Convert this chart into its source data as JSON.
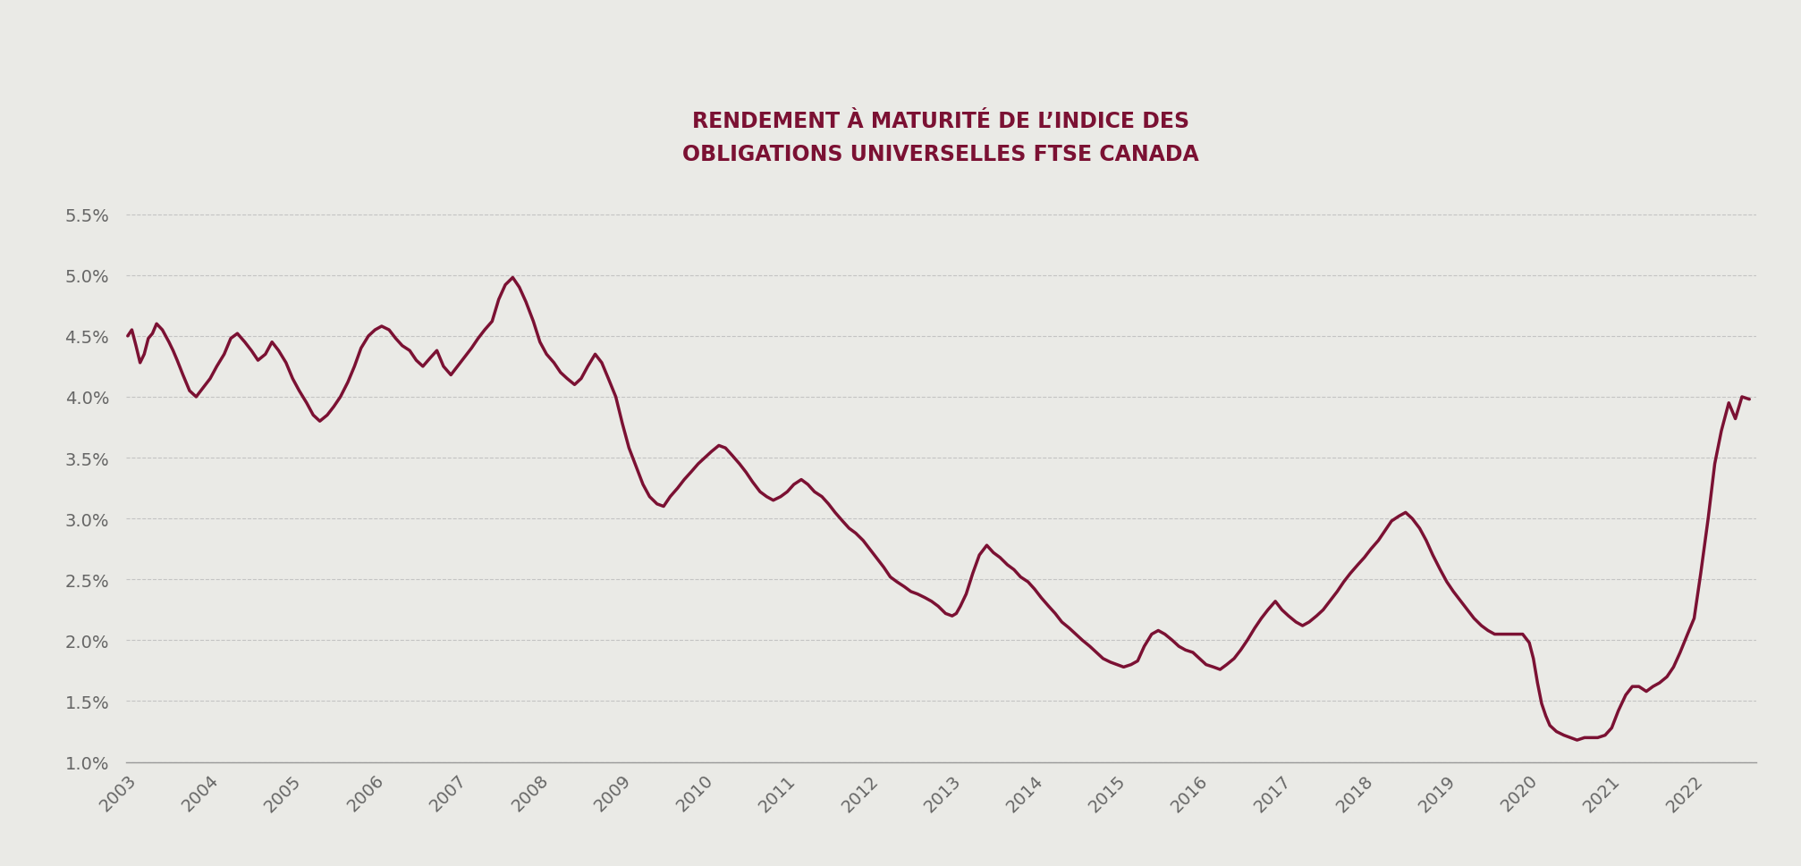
{
  "title": "RENDEMENT À MATURITÉ DE L’INDICE DES\nOBLIGATIONS UNIVERSELLES FTSE CANADA",
  "line_color": "#7B1133",
  "background_color": "#EAEAE6",
  "grid_color": "#BBBBBB",
  "axis_color": "#999999",
  "title_color": "#7B1133",
  "ylim": [
    0.01,
    0.057
  ],
  "yticks": [
    0.01,
    0.015,
    0.02,
    0.025,
    0.03,
    0.035,
    0.04,
    0.045,
    0.05,
    0.055
  ],
  "xlim_start": 2003.0,
  "xlim_end": 2022.75,
  "years": [
    2003,
    2004,
    2005,
    2006,
    2007,
    2008,
    2009,
    2010,
    2011,
    2012,
    2013,
    2014,
    2015,
    2016,
    2017,
    2018,
    2019,
    2020,
    2021,
    2022
  ],
  "data": [
    [
      2003.0,
      0.045
    ],
    [
      2003.05,
      0.0455
    ],
    [
      2003.1,
      0.0442
    ],
    [
      2003.15,
      0.0428
    ],
    [
      2003.2,
      0.0435
    ],
    [
      2003.25,
      0.0448
    ],
    [
      2003.3,
      0.0452
    ],
    [
      2003.35,
      0.046
    ],
    [
      2003.42,
      0.0455
    ],
    [
      2003.5,
      0.0445
    ],
    [
      2003.55,
      0.0438
    ],
    [
      2003.6,
      0.043
    ],
    [
      2003.67,
      0.0418
    ],
    [
      2003.75,
      0.0405
    ],
    [
      2003.83,
      0.04
    ],
    [
      2003.92,
      0.0408
    ],
    [
      2004.0,
      0.0415
    ],
    [
      2004.08,
      0.0425
    ],
    [
      2004.17,
      0.0435
    ],
    [
      2004.25,
      0.0448
    ],
    [
      2004.33,
      0.0452
    ],
    [
      2004.42,
      0.0445
    ],
    [
      2004.5,
      0.0438
    ],
    [
      2004.58,
      0.043
    ],
    [
      2004.67,
      0.0435
    ],
    [
      2004.75,
      0.0445
    ],
    [
      2004.83,
      0.0438
    ],
    [
      2004.92,
      0.0428
    ],
    [
      2005.0,
      0.0415
    ],
    [
      2005.08,
      0.0405
    ],
    [
      2005.17,
      0.0395
    ],
    [
      2005.25,
      0.0385
    ],
    [
      2005.33,
      0.038
    ],
    [
      2005.42,
      0.0385
    ],
    [
      2005.5,
      0.0392
    ],
    [
      2005.58,
      0.04
    ],
    [
      2005.67,
      0.0412
    ],
    [
      2005.75,
      0.0425
    ],
    [
      2005.83,
      0.044
    ],
    [
      2005.92,
      0.045
    ],
    [
      2006.0,
      0.0455
    ],
    [
      2006.08,
      0.0458
    ],
    [
      2006.17,
      0.0455
    ],
    [
      2006.25,
      0.0448
    ],
    [
      2006.33,
      0.0442
    ],
    [
      2006.42,
      0.0438
    ],
    [
      2006.5,
      0.043
    ],
    [
      2006.58,
      0.0425
    ],
    [
      2006.67,
      0.0432
    ],
    [
      2006.75,
      0.0438
    ],
    [
      2006.83,
      0.0425
    ],
    [
      2006.92,
      0.0418
    ],
    [
      2007.0,
      0.0425
    ],
    [
      2007.08,
      0.0432
    ],
    [
      2007.17,
      0.044
    ],
    [
      2007.25,
      0.0448
    ],
    [
      2007.33,
      0.0455
    ],
    [
      2007.42,
      0.0462
    ],
    [
      2007.5,
      0.048
    ],
    [
      2007.58,
      0.0492
    ],
    [
      2007.67,
      0.0498
    ],
    [
      2007.75,
      0.049
    ],
    [
      2007.83,
      0.0478
    ],
    [
      2007.92,
      0.0462
    ],
    [
      2008.0,
      0.0445
    ],
    [
      2008.08,
      0.0435
    ],
    [
      2008.17,
      0.0428
    ],
    [
      2008.25,
      0.042
    ],
    [
      2008.33,
      0.0415
    ],
    [
      2008.42,
      0.041
    ],
    [
      2008.5,
      0.0415
    ],
    [
      2008.58,
      0.0425
    ],
    [
      2008.67,
      0.0435
    ],
    [
      2008.75,
      0.0428
    ],
    [
      2008.83,
      0.0415
    ],
    [
      2008.92,
      0.04
    ],
    [
      2009.0,
      0.0378
    ],
    [
      2009.08,
      0.0358
    ],
    [
      2009.17,
      0.0342
    ],
    [
      2009.25,
      0.0328
    ],
    [
      2009.33,
      0.0318
    ],
    [
      2009.42,
      0.0312
    ],
    [
      2009.5,
      0.031
    ],
    [
      2009.58,
      0.0318
    ],
    [
      2009.67,
      0.0325
    ],
    [
      2009.75,
      0.0332
    ],
    [
      2009.83,
      0.0338
    ],
    [
      2009.92,
      0.0345
    ],
    [
      2010.0,
      0.035
    ],
    [
      2010.08,
      0.0355
    ],
    [
      2010.17,
      0.036
    ],
    [
      2010.25,
      0.0358
    ],
    [
      2010.33,
      0.0352
    ],
    [
      2010.42,
      0.0345
    ],
    [
      2010.5,
      0.0338
    ],
    [
      2010.58,
      0.033
    ],
    [
      2010.67,
      0.0322
    ],
    [
      2010.75,
      0.0318
    ],
    [
      2010.83,
      0.0315
    ],
    [
      2010.92,
      0.0318
    ],
    [
      2011.0,
      0.0322
    ],
    [
      2011.08,
      0.0328
    ],
    [
      2011.17,
      0.0332
    ],
    [
      2011.25,
      0.0328
    ],
    [
      2011.33,
      0.0322
    ],
    [
      2011.42,
      0.0318
    ],
    [
      2011.5,
      0.0312
    ],
    [
      2011.58,
      0.0305
    ],
    [
      2011.67,
      0.0298
    ],
    [
      2011.75,
      0.0292
    ],
    [
      2011.83,
      0.0288
    ],
    [
      2011.92,
      0.0282
    ],
    [
      2012.0,
      0.0275
    ],
    [
      2012.08,
      0.0268
    ],
    [
      2012.17,
      0.026
    ],
    [
      2012.25,
      0.0252
    ],
    [
      2012.33,
      0.0248
    ],
    [
      2012.42,
      0.0244
    ],
    [
      2012.5,
      0.024
    ],
    [
      2012.58,
      0.0238
    ],
    [
      2012.67,
      0.0235
    ],
    [
      2012.75,
      0.0232
    ],
    [
      2012.83,
      0.0228
    ],
    [
      2012.92,
      0.0222
    ],
    [
      2013.0,
      0.022
    ],
    [
      2013.05,
      0.0222
    ],
    [
      2013.1,
      0.0228
    ],
    [
      2013.17,
      0.0238
    ],
    [
      2013.25,
      0.0255
    ],
    [
      2013.33,
      0.027
    ],
    [
      2013.42,
      0.0278
    ],
    [
      2013.5,
      0.0272
    ],
    [
      2013.58,
      0.0268
    ],
    [
      2013.67,
      0.0262
    ],
    [
      2013.75,
      0.0258
    ],
    [
      2013.83,
      0.0252
    ],
    [
      2013.92,
      0.0248
    ],
    [
      2014.0,
      0.0242
    ],
    [
      2014.08,
      0.0235
    ],
    [
      2014.17,
      0.0228
    ],
    [
      2014.25,
      0.0222
    ],
    [
      2014.33,
      0.0215
    ],
    [
      2014.42,
      0.021
    ],
    [
      2014.5,
      0.0205
    ],
    [
      2014.58,
      0.02
    ],
    [
      2014.67,
      0.0195
    ],
    [
      2014.75,
      0.019
    ],
    [
      2014.83,
      0.0185
    ],
    [
      2014.92,
      0.0182
    ],
    [
      2015.0,
      0.018
    ],
    [
      2015.08,
      0.0178
    ],
    [
      2015.17,
      0.018
    ],
    [
      2015.25,
      0.0183
    ],
    [
      2015.33,
      0.0195
    ],
    [
      2015.42,
      0.0205
    ],
    [
      2015.5,
      0.0208
    ],
    [
      2015.58,
      0.0205
    ],
    [
      2015.67,
      0.02
    ],
    [
      2015.75,
      0.0195
    ],
    [
      2015.83,
      0.0192
    ],
    [
      2015.92,
      0.019
    ],
    [
      2016.0,
      0.0185
    ],
    [
      2016.08,
      0.018
    ],
    [
      2016.17,
      0.0178
    ],
    [
      2016.25,
      0.0176
    ],
    [
      2016.33,
      0.018
    ],
    [
      2016.42,
      0.0185
    ],
    [
      2016.5,
      0.0192
    ],
    [
      2016.58,
      0.02
    ],
    [
      2016.67,
      0.021
    ],
    [
      2016.75,
      0.0218
    ],
    [
      2016.83,
      0.0225
    ],
    [
      2016.92,
      0.0232
    ],
    [
      2017.0,
      0.0225
    ],
    [
      2017.08,
      0.022
    ],
    [
      2017.17,
      0.0215
    ],
    [
      2017.25,
      0.0212
    ],
    [
      2017.33,
      0.0215
    ],
    [
      2017.42,
      0.022
    ],
    [
      2017.5,
      0.0225
    ],
    [
      2017.58,
      0.0232
    ],
    [
      2017.67,
      0.024
    ],
    [
      2017.75,
      0.0248
    ],
    [
      2017.83,
      0.0255
    ],
    [
      2017.92,
      0.0262
    ],
    [
      2018.0,
      0.0268
    ],
    [
      2018.08,
      0.0275
    ],
    [
      2018.17,
      0.0282
    ],
    [
      2018.25,
      0.029
    ],
    [
      2018.33,
      0.0298
    ],
    [
      2018.42,
      0.0302
    ],
    [
      2018.5,
      0.0305
    ],
    [
      2018.58,
      0.03
    ],
    [
      2018.67,
      0.0292
    ],
    [
      2018.75,
      0.0282
    ],
    [
      2018.83,
      0.027
    ],
    [
      2018.92,
      0.0258
    ],
    [
      2019.0,
      0.0248
    ],
    [
      2019.08,
      0.024
    ],
    [
      2019.17,
      0.0232
    ],
    [
      2019.25,
      0.0225
    ],
    [
      2019.33,
      0.0218
    ],
    [
      2019.42,
      0.0212
    ],
    [
      2019.5,
      0.0208
    ],
    [
      2019.58,
      0.0205
    ],
    [
      2019.67,
      0.0205
    ],
    [
      2019.75,
      0.0205
    ],
    [
      2019.83,
      0.0205
    ],
    [
      2019.92,
      0.0205
    ],
    [
      2020.0,
      0.0198
    ],
    [
      2020.05,
      0.0185
    ],
    [
      2020.1,
      0.0165
    ],
    [
      2020.15,
      0.0148
    ],
    [
      2020.2,
      0.0138
    ],
    [
      2020.25,
      0.013
    ],
    [
      2020.33,
      0.0125
    ],
    [
      2020.42,
      0.0122
    ],
    [
      2020.5,
      0.012
    ],
    [
      2020.58,
      0.0118
    ],
    [
      2020.67,
      0.012
    ],
    [
      2020.75,
      0.012
    ],
    [
      2020.83,
      0.012
    ],
    [
      2020.92,
      0.0122
    ],
    [
      2021.0,
      0.0128
    ],
    [
      2021.08,
      0.0142
    ],
    [
      2021.17,
      0.0155
    ],
    [
      2021.25,
      0.0162
    ],
    [
      2021.33,
      0.0162
    ],
    [
      2021.42,
      0.0158
    ],
    [
      2021.5,
      0.0162
    ],
    [
      2021.58,
      0.0165
    ],
    [
      2021.67,
      0.017
    ],
    [
      2021.75,
      0.0178
    ],
    [
      2021.83,
      0.019
    ],
    [
      2021.92,
      0.0205
    ],
    [
      2022.0,
      0.0218
    ],
    [
      2022.08,
      0.0255
    ],
    [
      2022.17,
      0.03
    ],
    [
      2022.25,
      0.0345
    ],
    [
      2022.33,
      0.0372
    ],
    [
      2022.42,
      0.0395
    ],
    [
      2022.5,
      0.0382
    ],
    [
      2022.58,
      0.04
    ],
    [
      2022.67,
      0.0398
    ]
  ]
}
